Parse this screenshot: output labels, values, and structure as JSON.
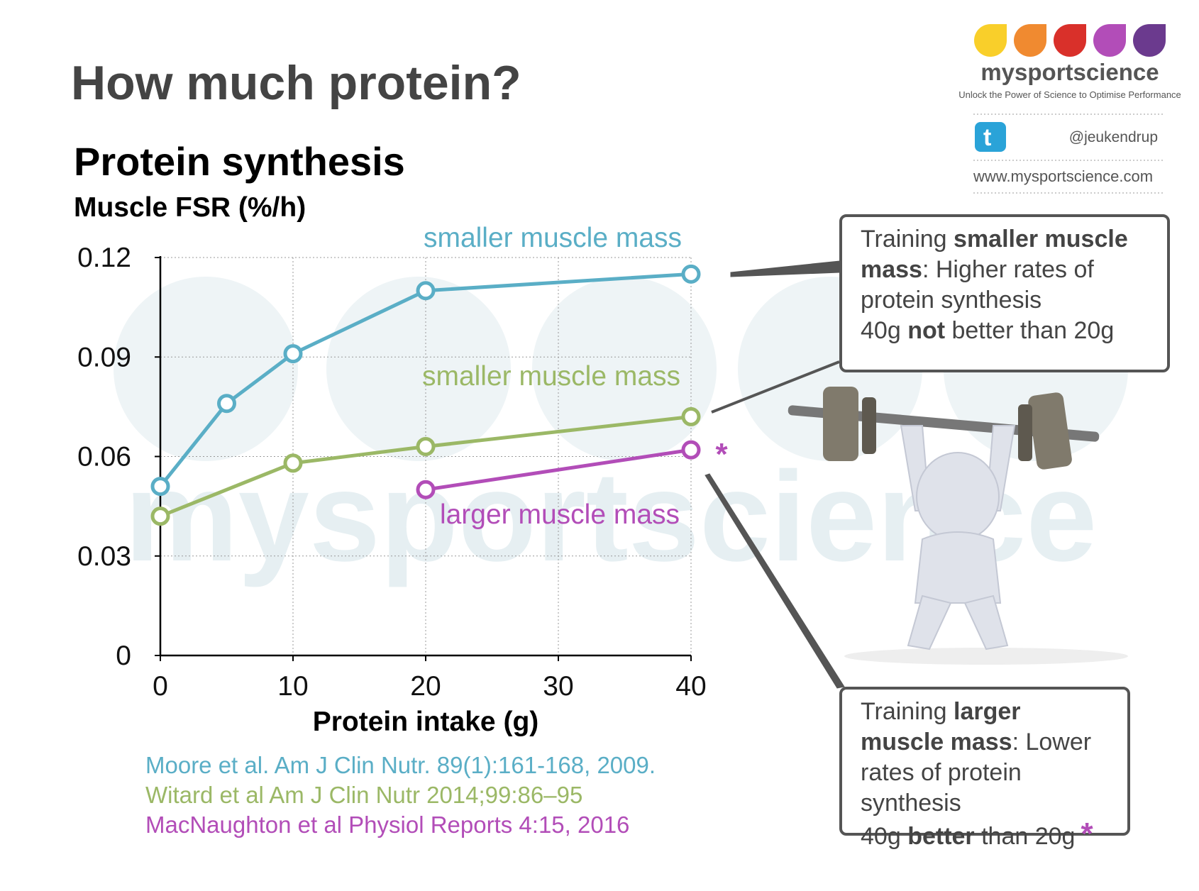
{
  "header": {
    "title": "How much protein?"
  },
  "logo": {
    "name": "mysportscience",
    "tagline": "Unlock the Power of Science to Optimise Performance",
    "twitter": "@jeukendrup",
    "url": "www.mysportscience.com"
  },
  "watermark": "mysportscience",
  "chart_data": {
    "type": "line",
    "title": "Protein synthesis",
    "y_label": "Muscle FSR (%/h)",
    "x_label": "Protein intake (g)",
    "xlim": [
      0,
      40
    ],
    "xticks": [
      0,
      10,
      20,
      30,
      40
    ],
    "ylim": [
      0,
      0.12
    ],
    "yticks": [
      0,
      0.03,
      0.06,
      0.09,
      0.12
    ],
    "grid": true,
    "series": [
      {
        "name": "smaller muscle mass",
        "color": "#5aaec6",
        "x": [
          0,
          5,
          10,
          20,
          40
        ],
        "values": [
          0.051,
          0.076,
          0.091,
          0.11,
          0.115
        ]
      },
      {
        "name": "smaller muscle mass",
        "color": "#9bb866",
        "x": [
          0,
          10,
          20,
          40
        ],
        "values": [
          0.042,
          0.058,
          0.063,
          0.072
        ]
      },
      {
        "name": "larger muscle mass",
        "color": "#b24db8",
        "x": [
          20,
          40
        ],
        "values": [
          0.05,
          0.062
        ]
      }
    ],
    "annotation": "*"
  },
  "references": [
    {
      "text": "Moore et al. Am J Clin Nutr. 89(1):161-168, 2009.",
      "color": "#5aaec6"
    },
    {
      "text": "Witard et al Am J Clin Nutr 2014;99:86–95",
      "color": "#9bb866"
    },
    {
      "text": "MacNaughton et al Physiol Reports 4:15, 2016",
      "color": "#b24db8"
    }
  ],
  "callouts": [
    {
      "lines": [
        [
          {
            "text": "Training ",
            "bold": false
          },
          {
            "text": "smaller muscle mass",
            "bold": true
          },
          {
            "text": ": Higher rates of protein synthesis",
            "bold": false
          }
        ],
        [
          {
            "text": "40g ",
            "bold": false
          },
          {
            "text": "not",
            "bold": true
          },
          {
            "text": " better than 20g",
            "bold": false
          }
        ]
      ]
    },
    {
      "lines": [
        [
          {
            "text": "Training ",
            "bold": false
          },
          {
            "text": "larger muscle mass",
            "bold": true
          },
          {
            "text": ": Lower rates of protein synthesis",
            "bold": false
          }
        ],
        [
          {
            "text": "40g ",
            "bold": false
          },
          {
            "text": "better",
            "bold": true
          },
          {
            "text": " than 20g",
            "bold": false
          }
        ]
      ],
      "mark": "*"
    }
  ]
}
